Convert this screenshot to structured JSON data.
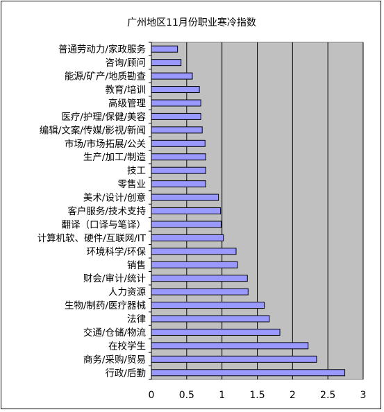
{
  "chart_data": {
    "type": "bar",
    "orientation": "horizontal",
    "title": "广州地区11月份职业寒冷指数",
    "categories": [
      "普通劳动力/家政服务",
      "咨询/顾问",
      "能源/矿产/地质勘查",
      "教育/培训",
      "高级管理",
      "医疗/护理/保健/美容",
      "编辑/文案/传媒/影视/新闻",
      "市场/市场拓展/公关",
      "生产/加工/制造",
      "技工",
      "零售业",
      "美术/设计/创意",
      "客户服务/技术支持",
      "翻译（口译与笔译）",
      "计算机软、硬件/互联网/IT",
      "环境科学/环保",
      "销售",
      "财会/审计/统计",
      "人力资源",
      "生物/制药/医疗器械",
      "法律",
      "交通/仓储/物流",
      "在校学生",
      "商务/采购/贸易",
      "行政/后勤"
    ],
    "values": [
      0.37,
      0.42,
      0.58,
      0.68,
      0.7,
      0.7,
      0.72,
      0.76,
      0.77,
      0.77,
      0.77,
      0.95,
      0.98,
      0.99,
      1.02,
      1.2,
      1.22,
      1.36,
      1.37,
      1.6,
      1.67,
      1.82,
      2.22,
      2.34,
      2.74
    ],
    "xlim": [
      0,
      3
    ],
    "ticks": [
      "0",
      "0.5",
      "1",
      "1.5",
      "2",
      "2.5",
      "3"
    ],
    "tick_values": [
      0,
      0.5,
      1,
      1.5,
      2,
      2.5,
      3
    ],
    "grid": true,
    "colors": {
      "bar_fill": "#9999ff",
      "bar_stroke": "#000000",
      "plot_bg": "#c0c0c0",
      "gridline": "#000000"
    }
  }
}
